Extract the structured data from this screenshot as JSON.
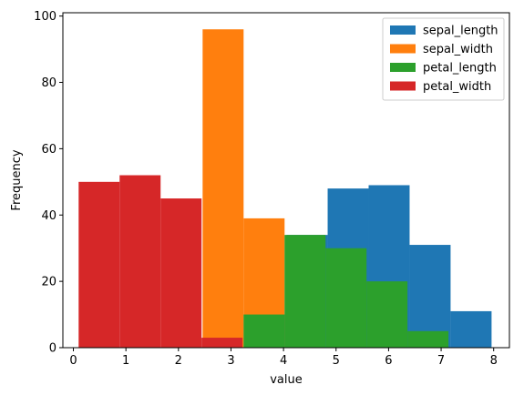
{
  "chart_data": {
    "type": "bar",
    "title": "",
    "xlabel": "value",
    "ylabel": "Frequency",
    "xlim": [
      -0.2,
      8.3
    ],
    "ylim": [
      0,
      101
    ],
    "xticks": [
      0,
      1,
      2,
      3,
      4,
      5,
      6,
      7,
      8
    ],
    "yticks": [
      0,
      20,
      40,
      60,
      80,
      100
    ],
    "grid": false,
    "legend_position": "top-right",
    "series": [
      {
        "name": "sepal_length",
        "color": "#1f77b4",
        "bins": [
          {
            "x0": 2.5,
            "x1": 3.28,
            "value": 0
          },
          {
            "x0": 3.28,
            "x1": 4.06,
            "value": 10
          },
          {
            "x0": 4.06,
            "x1": 4.84,
            "value": 34
          },
          {
            "x0": 4.84,
            "x1": 5.62,
            "value": 48
          },
          {
            "x0": 5.62,
            "x1": 6.4,
            "value": 49
          },
          {
            "x0": 6.4,
            "x1": 7.18,
            "value": 31
          },
          {
            "x0": 7.18,
            "x1": 7.96,
            "value": 11
          }
        ]
      },
      {
        "name": "sepal_width",
        "color": "#ff7f0e",
        "bins": [
          {
            "x0": 2.46,
            "x1": 3.24,
            "value": 96
          },
          {
            "x0": 3.24,
            "x1": 4.02,
            "value": 39
          }
        ]
      },
      {
        "name": "petal_length",
        "color": "#2ca02c",
        "bins": [
          {
            "x0": 3.24,
            "x1": 4.02,
            "value": 10
          },
          {
            "x0": 4.02,
            "x1": 4.8,
            "value": 34
          },
          {
            "x0": 4.8,
            "x1": 5.58,
            "value": 30
          },
          {
            "x0": 5.58,
            "x1": 6.36,
            "value": 20
          },
          {
            "x0": 6.36,
            "x1": 7.14,
            "value": 5
          }
        ]
      },
      {
        "name": "petal_width",
        "color": "#d62728",
        "bins": [
          {
            "x0": 0.1,
            "x1": 0.88,
            "value": 50
          },
          {
            "x0": 0.88,
            "x1": 1.66,
            "value": 52
          },
          {
            "x0": 1.66,
            "x1": 2.44,
            "value": 45
          },
          {
            "x0": 2.44,
            "x1": 3.22,
            "value": 3
          }
        ]
      }
    ]
  }
}
